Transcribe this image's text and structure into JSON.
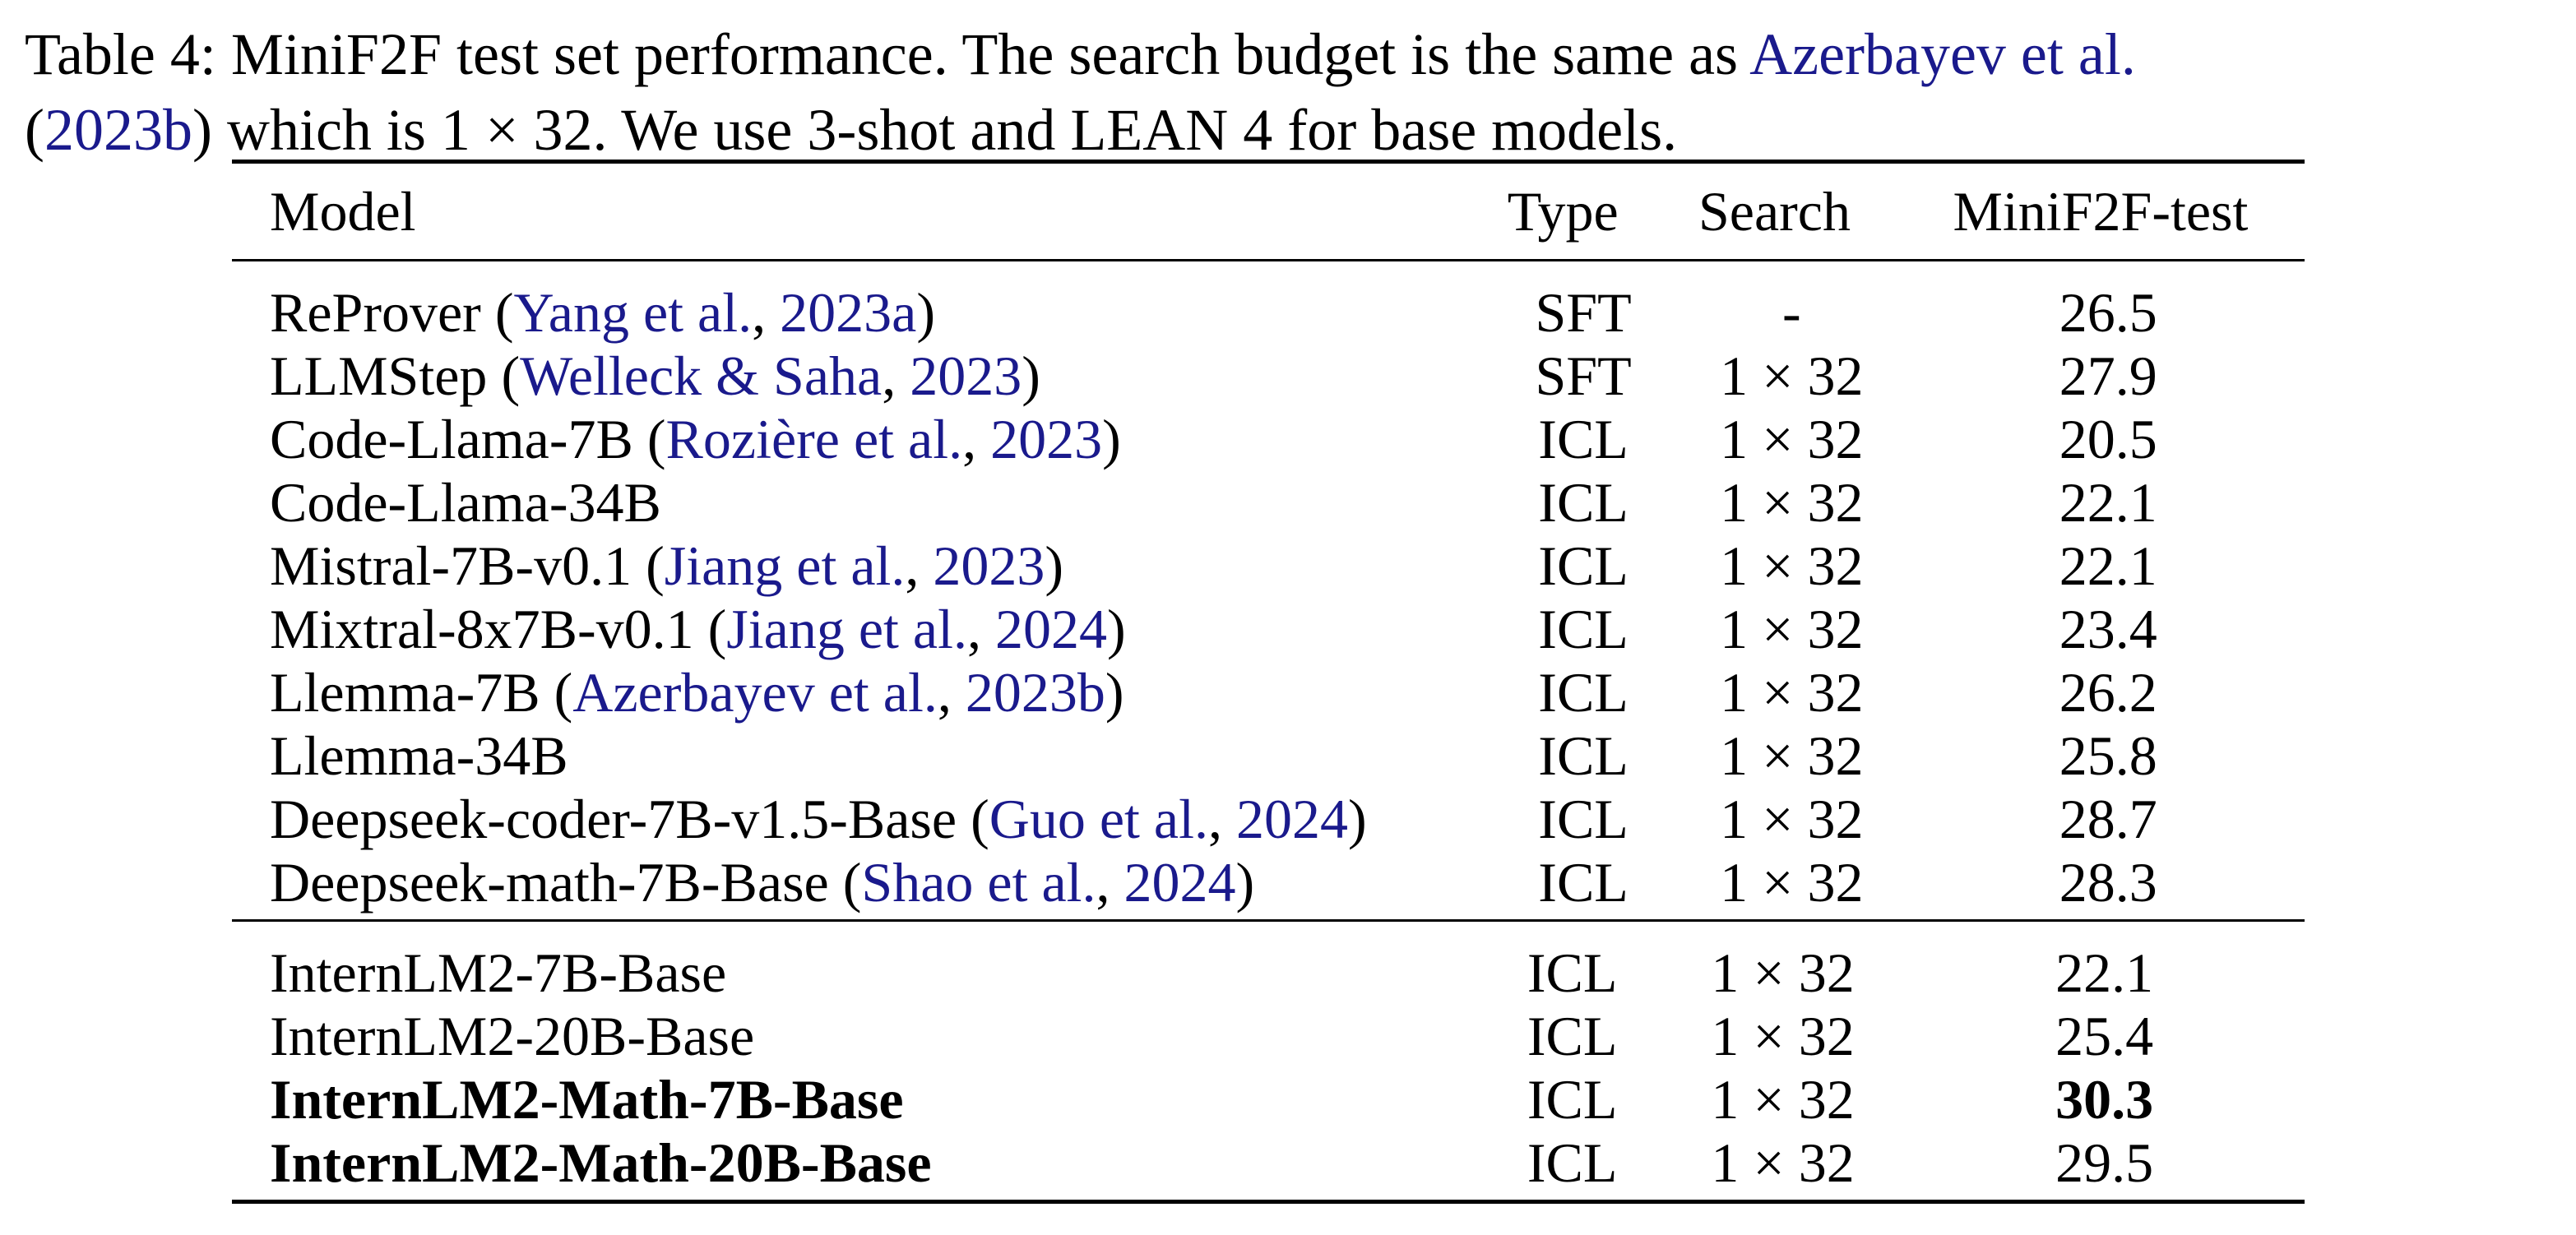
{
  "caption": {
    "line1_prefix": "Table 4: MiniF2F test set performance. The search budget is the same as ",
    "line1_cite": "Azerbayev et al.",
    "line2_open": "(",
    "line2_cite": "2023b",
    "line2_rest": ") which is 1 × 32. We use 3-shot and LEAN 4 for base models."
  },
  "colors": {
    "citation": "#1a1a8c",
    "text": "#000000"
  },
  "table": {
    "headers": {
      "model": "Model",
      "type": "Type",
      "search": "Search",
      "score": "MiniF2F-test"
    },
    "group1": [
      {
        "name": "ReProver",
        "cite_author": "Yang et al.",
        "cite_year": "2023a",
        "type": "SFT",
        "search": "-",
        "score": "26.5"
      },
      {
        "name": "LLMStep",
        "cite_author": "Welleck & Saha",
        "cite_year": "2023",
        "type": "SFT",
        "search": "1 × 32",
        "score": "27.9"
      },
      {
        "name": "Code-Llama-7B",
        "cite_author": "Rozière et al.",
        "cite_year": "2023",
        "type": "ICL",
        "search": "1 × 32",
        "score": "20.5"
      },
      {
        "name": "Code-Llama-34B",
        "cite_author": "",
        "cite_year": "",
        "type": "ICL",
        "search": "1 × 32",
        "score": "22.1"
      },
      {
        "name": "Mistral-7B-v0.1",
        "cite_author": "Jiang et al.",
        "cite_year": "2023",
        "type": "ICL",
        "search": "1 × 32",
        "score": "22.1"
      },
      {
        "name": "Mixtral-8x7B-v0.1",
        "cite_author": "Jiang et al.",
        "cite_year": "2024",
        "type": "ICL",
        "search": "1 × 32",
        "score": "23.4"
      },
      {
        "name": "Llemma-7B",
        "cite_author": "Azerbayev et al.",
        "cite_year": "2023b",
        "type": "ICL",
        "search": "1 × 32",
        "score": "26.2"
      },
      {
        "name": "Llemma-34B",
        "cite_author": "",
        "cite_year": "",
        "type": "ICL",
        "search": "1 × 32",
        "score": "25.8"
      },
      {
        "name": "Deepseek-coder-7B-v1.5-Base",
        "cite_author": "Guo et al.",
        "cite_year": "2024",
        "type": "ICL",
        "search": "1 × 32",
        "score": "28.7"
      },
      {
        "name": "Deepseek-math-7B-Base",
        "cite_author": "Shao et al.",
        "cite_year": "2024",
        "type": "ICL",
        "search": "1 × 32",
        "score": "28.3"
      }
    ],
    "group2": [
      {
        "name": "InternLM2-7B-Base",
        "type": "ICL",
        "search": "1 × 32",
        "score": "22.1",
        "bold_name": false,
        "bold_score": false
      },
      {
        "name": "InternLM2-20B-Base",
        "type": "ICL",
        "search": "1 × 32",
        "score": "25.4",
        "bold_name": false,
        "bold_score": false
      },
      {
        "name": "InternLM2-Math-7B-Base",
        "type": "ICL",
        "search": "1 × 32",
        "score": "30.3",
        "bold_name": true,
        "bold_score": true
      },
      {
        "name": "InternLM2-Math-20B-Base",
        "type": "ICL",
        "search": "1 × 32",
        "score": "29.5",
        "bold_name": true,
        "bold_score": false
      }
    ]
  }
}
